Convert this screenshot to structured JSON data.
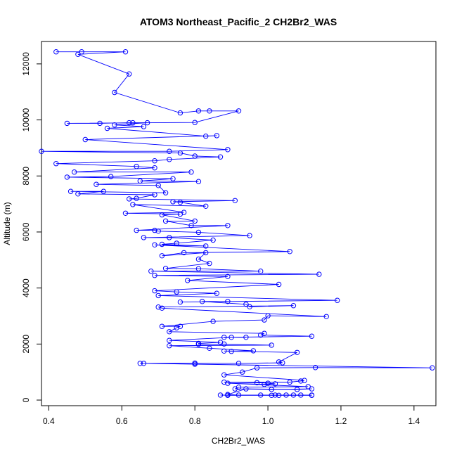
{
  "chart_data": {
    "type": "scatter",
    "title": "ATOM3 Northeast_Pacific_2 CH2Br2_WAS",
    "xlabel": "CH2Br2_WAS",
    "ylabel": "Altitude (m)",
    "xlim": [
      0.38,
      1.46
    ],
    "ylim": [
      -200,
      12800
    ],
    "xticks": [
      0.4,
      0.6,
      0.8,
      1.0,
      1.2,
      1.4
    ],
    "xtick_labels": [
      "0.4",
      "0.6",
      "0.8",
      "1.0",
      "1.2",
      "1.4"
    ],
    "yticks": [
      0,
      2000,
      4000,
      6000,
      8000,
      10000,
      12000
    ],
    "ytick_labels": [
      "0",
      "2000",
      "4000",
      "6000",
      "8000",
      "10000",
      "12000"
    ],
    "grid": false,
    "colors": {
      "series": "#0000ff"
    },
    "series": [
      {
        "values": [
          [
            0.42,
            12430
          ],
          [
            0.49,
            12430
          ],
          [
            0.61,
            12430
          ],
          [
            0.48,
            12340
          ],
          [
            0.62,
            11640
          ],
          [
            0.58,
            10980
          ],
          [
            0.76,
            10250
          ],
          [
            0.81,
            10320
          ],
          [
            0.84,
            10320
          ],
          [
            0.92,
            10320
          ],
          [
            0.8,
            9910
          ],
          [
            0.45,
            9880
          ],
          [
            0.54,
            9880
          ],
          [
            0.62,
            9900
          ],
          [
            0.63,
            9900
          ],
          [
            0.67,
            9900
          ],
          [
            0.58,
            9820
          ],
          [
            0.66,
            9760
          ],
          [
            0.56,
            9700
          ],
          [
            0.83,
            9420
          ],
          [
            0.86,
            9440
          ],
          [
            0.5,
            9300
          ],
          [
            0.89,
            8940
          ],
          [
            0.73,
            8880
          ],
          [
            0.38,
            8880
          ],
          [
            0.76,
            8820
          ],
          [
            0.8,
            8710
          ],
          [
            0.87,
            8680
          ],
          [
            0.73,
            8590
          ],
          [
            0.69,
            8540
          ],
          [
            0.42,
            8440
          ],
          [
            0.64,
            8340
          ],
          [
            0.69,
            8290
          ],
          [
            0.47,
            8140
          ],
          [
            0.79,
            8140
          ],
          [
            0.57,
            7980
          ],
          [
            0.45,
            7960
          ],
          [
            0.74,
            7900
          ],
          [
            0.65,
            7820
          ],
          [
            0.81,
            7800
          ],
          [
            0.53,
            7700
          ],
          [
            0.7,
            7660
          ],
          [
            0.72,
            7400
          ],
          [
            0.46,
            7450
          ],
          [
            0.55,
            7450
          ],
          [
            0.48,
            7360
          ],
          [
            0.69,
            7330
          ],
          [
            0.64,
            7200
          ],
          [
            0.62,
            7180
          ],
          [
            0.91,
            7120
          ],
          [
            0.74,
            7080
          ],
          [
            0.76,
            7060
          ],
          [
            0.83,
            6920
          ],
          [
            0.63,
            6980
          ],
          [
            0.77,
            6700
          ],
          [
            0.61,
            6670
          ],
          [
            0.76,
            6640
          ],
          [
            0.71,
            6610
          ],
          [
            0.8,
            6390
          ],
          [
            0.72,
            6390
          ],
          [
            0.79,
            6230
          ],
          [
            0.89,
            6230
          ],
          [
            0.64,
            6060
          ],
          [
            0.69,
            6060
          ],
          [
            0.7,
            6030
          ],
          [
            0.81,
            5990
          ],
          [
            0.95,
            5870
          ],
          [
            0.66,
            5800
          ],
          [
            0.73,
            5800
          ],
          [
            0.85,
            5710
          ],
          [
            0.75,
            5600
          ],
          [
            0.71,
            5560
          ],
          [
            0.83,
            5500
          ],
          [
            0.69,
            5540
          ],
          [
            1.06,
            5300
          ],
          [
            0.77,
            5260
          ],
          [
            0.71,
            5150
          ],
          [
            0.83,
            5260
          ],
          [
            0.81,
            5030
          ],
          [
            0.84,
            4880
          ],
          [
            0.72,
            4700
          ],
          [
            0.81,
            4690
          ],
          [
            0.98,
            4600
          ],
          [
            0.68,
            4600
          ],
          [
            1.14,
            4490
          ],
          [
            0.69,
            4450
          ],
          [
            0.89,
            4410
          ],
          [
            0.78,
            4270
          ],
          [
            1.03,
            4130
          ],
          [
            0.69,
            3900
          ],
          [
            0.75,
            3860
          ],
          [
            0.86,
            3810
          ],
          [
            0.7,
            3730
          ],
          [
            1.19,
            3560
          ],
          [
            0.76,
            3500
          ],
          [
            0.89,
            3520
          ],
          [
            0.82,
            3520
          ],
          [
            0.94,
            3420
          ],
          [
            0.95,
            3330
          ],
          [
            1.07,
            3370
          ],
          [
            0.7,
            3320
          ],
          [
            0.71,
            3280
          ],
          [
            1.16,
            2980
          ],
          [
            1.0,
            3010
          ],
          [
            0.99,
            2860
          ],
          [
            0.85,
            2810
          ],
          [
            0.71,
            2630
          ],
          [
            0.76,
            2630
          ],
          [
            0.75,
            2580
          ],
          [
            0.73,
            2440
          ],
          [
            0.99,
            2380
          ],
          [
            0.98,
            2320
          ],
          [
            1.12,
            2280
          ],
          [
            0.88,
            2240
          ],
          [
            0.94,
            2240
          ],
          [
            0.9,
            2240
          ],
          [
            0.73,
            2130
          ],
          [
            0.87,
            2060
          ],
          [
            0.81,
            2020
          ],
          [
            0.81,
            1990
          ],
          [
            0.88,
            2000
          ],
          [
            1.01,
            1960
          ],
          [
            0.73,
            1940
          ],
          [
            0.84,
            1850
          ],
          [
            0.96,
            1760
          ],
          [
            0.88,
            1750
          ],
          [
            0.9,
            1740
          ],
          [
            1.08,
            1700
          ],
          [
            1.03,
            1360
          ],
          [
            1.04,
            1330
          ],
          [
            0.92,
            1310
          ],
          [
            0.8,
            1320
          ],
          [
            0.65,
            1310
          ],
          [
            0.66,
            1310
          ],
          [
            0.8,
            1280
          ],
          [
            1.45,
            1150
          ],
          [
            1.13,
            1160
          ],
          [
            0.97,
            1150
          ],
          [
            0.93,
            1000
          ],
          [
            0.88,
            900
          ],
          [
            1.1,
            700
          ],
          [
            1.09,
            680
          ],
          [
            1.06,
            640
          ],
          [
            0.88,
            640
          ],
          [
            0.97,
            620
          ],
          [
            1.0,
            600
          ],
          [
            1.02,
            580
          ],
          [
            0.99,
            560
          ],
          [
            0.89,
            600
          ],
          [
            1.11,
            480
          ],
          [
            0.92,
            460
          ],
          [
            0.91,
            400
          ],
          [
            1.01,
            380
          ],
          [
            1.12,
            400
          ],
          [
            1.08,
            380
          ],
          [
            0.94,
            400
          ],
          [
            0.89,
            200
          ],
          [
            0.92,
            180
          ],
          [
            0.98,
            180
          ],
          [
            1.01,
            170
          ],
          [
            1.02,
            180
          ],
          [
            1.03,
            170
          ],
          [
            1.07,
            180
          ],
          [
            1.12,
            170
          ],
          [
            0.89,
            170
          ],
          [
            0.87,
            180
          ],
          [
            1.05,
            180
          ],
          [
            1.09,
            180
          ],
          [
            1.12,
            180
          ]
        ]
      }
    ]
  }
}
